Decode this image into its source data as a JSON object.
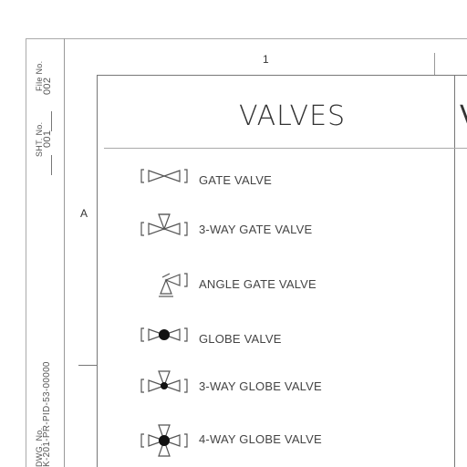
{
  "title_block": {
    "file_no_label": "File No.",
    "file_no_value": "002",
    "sht_no_label": "SHT. No.",
    "sht_no_value": "001",
    "dwg_no_label": "DWG. No.",
    "dwg_no_value": "K-201-PR-PID-53-00000"
  },
  "grid": {
    "column_1": "1",
    "row_a": "A"
  },
  "legend": {
    "heading": "VALVES",
    "next_heading_fragment": "V",
    "items": [
      {
        "symbol": "gate-valve-icon",
        "label": "GATE VALVE"
      },
      {
        "symbol": "3-way-gate-valve-icon",
        "label": "3-WAY GATE VALVE"
      },
      {
        "symbol": "angle-gate-valve-icon",
        "label": "ANGLE GATE VALVE"
      },
      {
        "symbol": "globe-valve-icon",
        "label": "GLOBE VALVE"
      },
      {
        "symbol": "3-way-globe-valve-icon",
        "label": "3-WAY GLOBE VALVE"
      },
      {
        "symbol": "4-way-globe-valve-icon",
        "label": "4-WAY GLOBE VALVE"
      }
    ]
  }
}
